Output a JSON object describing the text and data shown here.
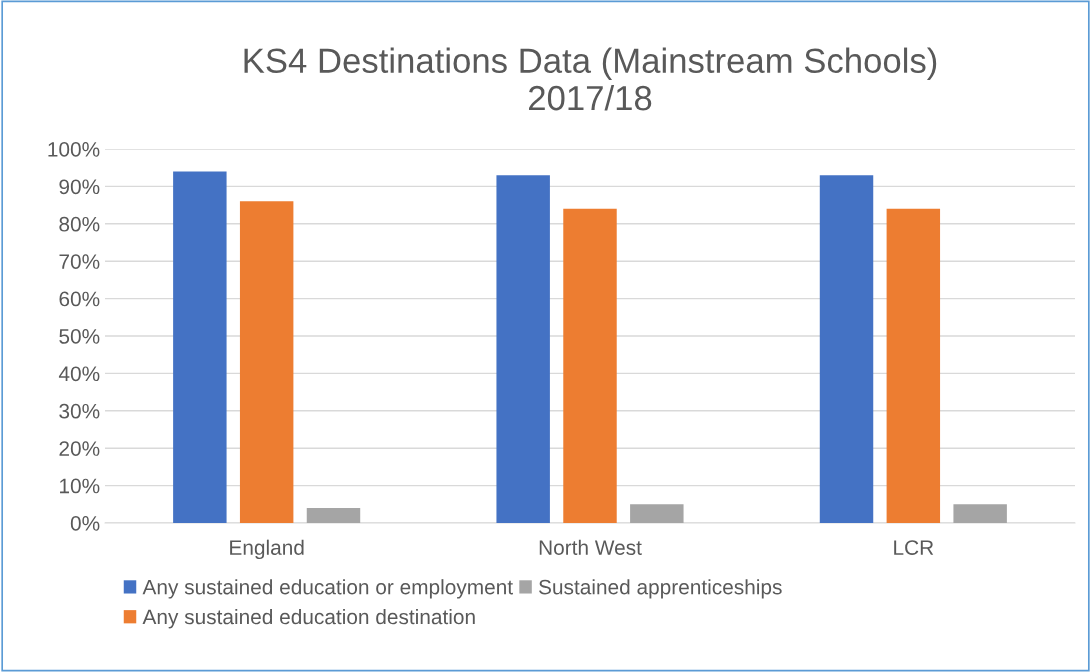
{
  "chart_data": {
    "type": "bar",
    "title": "KS4 Destinations Data (Mainstream Schools)\n2017/18",
    "categories": [
      "England",
      "North West",
      "LCR"
    ],
    "series": [
      {
        "name": "Any sustained education or employment",
        "color": "#4472c4",
        "values": [
          94,
          93,
          93
        ]
      },
      {
        "name": "Any sustained education destination",
        "color": "#ed7d31",
        "values": [
          86,
          84,
          84
        ]
      },
      {
        "name": "Sustained apprenticeships",
        "color": "#a5a5a5",
        "values": [
          4,
          5,
          5
        ]
      }
    ],
    "ylim": [
      0,
      100
    ],
    "yticks": [
      {
        "value": 0,
        "label": "0%"
      },
      {
        "value": 10,
        "label": "10%"
      },
      {
        "value": 20,
        "label": "20%"
      },
      {
        "value": 30,
        "label": "30%"
      },
      {
        "value": 40,
        "label": "40%"
      },
      {
        "value": 50,
        "label": "50%"
      },
      {
        "value": 60,
        "label": "60%"
      },
      {
        "value": 70,
        "label": "70%"
      },
      {
        "value": 80,
        "label": "80%"
      },
      {
        "value": 90,
        "label": "90%"
      },
      {
        "value": 100,
        "label": "100%"
      }
    ],
    "grid": "y",
    "legend": "bottom"
  }
}
